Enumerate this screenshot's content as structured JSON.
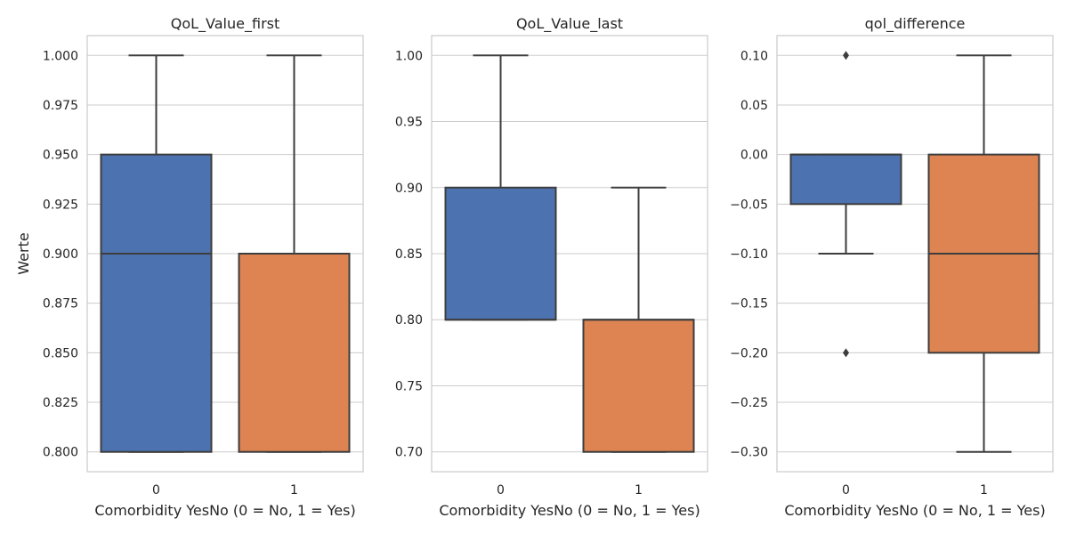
{
  "chart_data": [
    {
      "type": "box",
      "title": "QoL_Value_first",
      "xlabel": "Comorbidity YesNo (0 = No, 1 = Yes)",
      "ylabel": "Werte",
      "categories": [
        "0",
        "1"
      ],
      "ylim": [
        0.79,
        1.01
      ],
      "yticks": [
        "0.800",
        "0.825",
        "0.850",
        "0.875",
        "0.900",
        "0.925",
        "0.950",
        "0.975",
        "1.000"
      ],
      "grid": true,
      "boxes": [
        {
          "category": "0",
          "color": "#4c72b0",
          "whisker_low": 0.8,
          "q1": 0.8,
          "median": 0.9,
          "q3": 0.95,
          "whisker_high": 1.0,
          "outliers": []
        },
        {
          "category": "1",
          "color": "#dd8452",
          "whisker_low": 0.8,
          "q1": 0.8,
          "median": 0.9,
          "q3": 0.9,
          "whisker_high": 1.0,
          "outliers": []
        }
      ]
    },
    {
      "type": "box",
      "title": "QoL_Value_last",
      "xlabel": "Comorbidity YesNo (0 = No, 1 = Yes)",
      "ylabel": "",
      "categories": [
        "0",
        "1"
      ],
      "ylim": [
        0.685,
        1.015
      ],
      "yticks": [
        "0.70",
        "0.75",
        "0.80",
        "0.85",
        "0.90",
        "0.95",
        "1.00"
      ],
      "grid": true,
      "boxes": [
        {
          "category": "0",
          "color": "#4c72b0",
          "whisker_low": 0.8,
          "q1": 0.8,
          "median": 0.8,
          "q3": 0.9,
          "whisker_high": 1.0,
          "outliers": []
        },
        {
          "category": "1",
          "color": "#dd8452",
          "whisker_low": 0.7,
          "q1": 0.7,
          "median": 0.8,
          "q3": 0.8,
          "whisker_high": 0.9,
          "outliers": []
        }
      ]
    },
    {
      "type": "box",
      "title": "qol_difference",
      "xlabel": "Comorbidity YesNo (0 = No, 1 = Yes)",
      "ylabel": "",
      "categories": [
        "0",
        "1"
      ],
      "ylim": [
        -0.32,
        0.12
      ],
      "yticks": [
        "−0.30",
        "−0.25",
        "−0.20",
        "−0.15",
        "−0.10",
        "−0.05",
        "0.00",
        "0.05",
        "0.10"
      ],
      "grid": true,
      "boxes": [
        {
          "category": "0",
          "color": "#4c72b0",
          "whisker_low": -0.1,
          "q1": -0.05,
          "median": 0.0,
          "q3": 0.0,
          "whisker_high": 0.0,
          "outliers": [
            0.1,
            -0.2
          ]
        },
        {
          "category": "1",
          "color": "#dd8452",
          "whisker_low": -0.3,
          "q1": -0.2,
          "median": -0.1,
          "q3": 0.0,
          "whisker_high": 0.1,
          "outliers": []
        }
      ]
    }
  ]
}
